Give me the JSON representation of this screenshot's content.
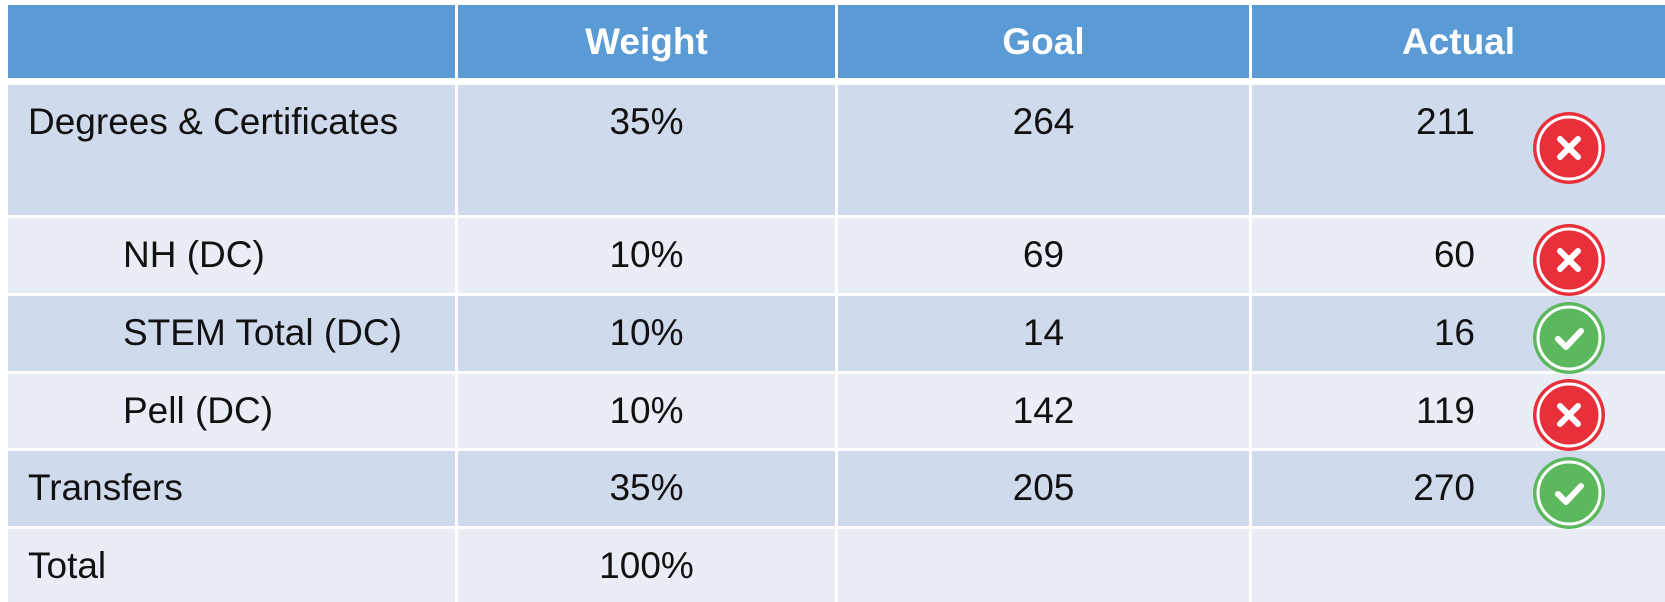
{
  "table": {
    "header": [
      "Weight",
      "Goal",
      "Actual"
    ],
    "rows": [
      [
        "Degrees & Certificates",
        "35%",
        "264",
        "211"
      ],
      [
        "NH (DC)",
        "10%",
        "69",
        "60"
      ],
      [
        "STEM Total (DC)",
        "10%",
        "14",
        "16"
      ],
      [
        "Pell (DC)",
        "10%",
        "142",
        "119"
      ],
      [
        "Transfers",
        "35%",
        "205",
        "270"
      ],
      [
        "Total",
        "100%"
      ]
    ]
  }
}
